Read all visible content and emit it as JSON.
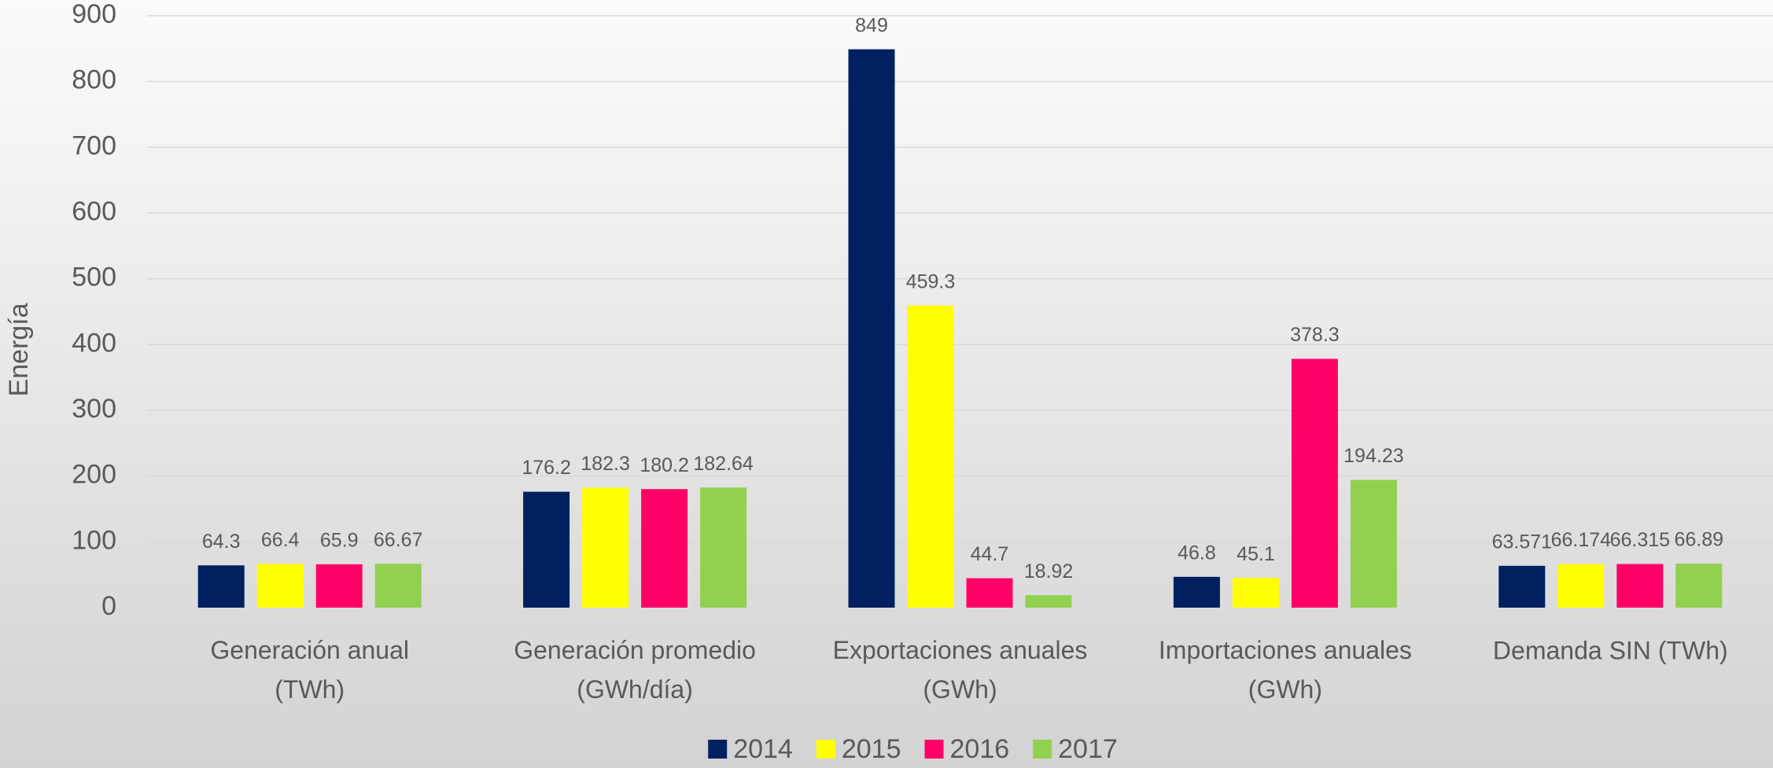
{
  "chart_data": {
    "type": "bar",
    "y_label": "Energía",
    "categories": [
      "Generación anual (TWh)",
      "Generación promedio (GWh/día)",
      "Exportaciones anuales (GWh)",
      "Importaciones anuales (GWh)",
      "Demanda SIN (TWh)"
    ],
    "series": [
      {
        "name": "2014",
        "color": "#002060",
        "values": [
          64.3,
          176.2,
          849,
          46.8,
          63.571
        ]
      },
      {
        "name": "2015",
        "color": "#ffff00",
        "values": [
          66.4,
          182.3,
          459.3,
          45.1,
          66.174
        ]
      },
      {
        "name": "2016",
        "color": "#ff0066",
        "values": [
          65.9,
          180.2,
          44.7,
          378.3,
          66.315
        ]
      },
      {
        "name": "2017",
        "color": "#92d050",
        "values": [
          66.67,
          182.64,
          18.92,
          194.23,
          66.89
        ]
      }
    ],
    "ylim": [
      0,
      900
    ],
    "yticks": [
      0,
      100,
      200,
      300,
      400,
      500,
      600,
      700,
      800,
      900
    ],
    "grid": true,
    "legend": "bottom"
  }
}
